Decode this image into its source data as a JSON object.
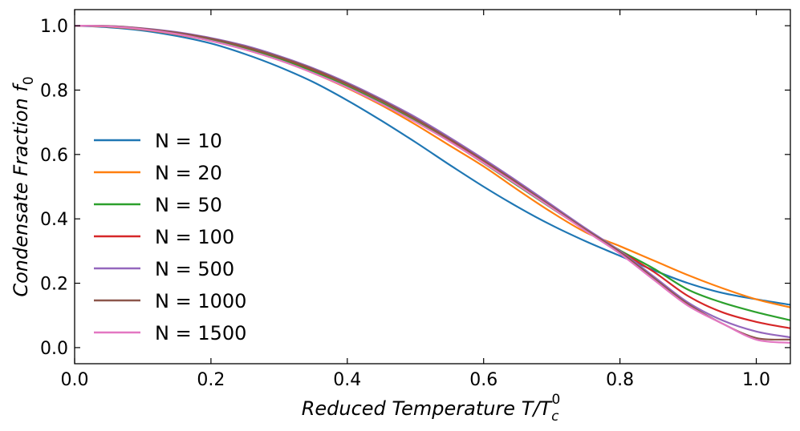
{
  "chart_data": {
    "type": "line",
    "title": "",
    "xlabel": "Reduced Temperature T/T",
    "xlabel_sub": "c",
    "xlabel_sup": "0",
    "ylabel": "Condensate Fraction f",
    "ylabel_sub": "0",
    "xlim": [
      0.0,
      1.05
    ],
    "ylim": [
      -0.05,
      1.05
    ],
    "xticks": [
      0.0,
      0.2,
      0.4,
      0.6,
      0.8,
      1.0
    ],
    "xtick_labels": [
      "0.0",
      "0.2",
      "0.4",
      "0.6",
      "0.8",
      "1.0"
    ],
    "yticks": [
      0.0,
      0.2,
      0.4,
      0.6,
      0.8,
      1.0
    ],
    "ytick_labels": [
      "0.0",
      "0.2",
      "0.4",
      "0.6",
      "0.8",
      "1.0"
    ],
    "grid": false,
    "legend_position": "center-left",
    "x": [
      0.0,
      0.05,
      0.1,
      0.15,
      0.2,
      0.25,
      0.3,
      0.35,
      0.4,
      0.45,
      0.5,
      0.55,
      0.6,
      0.65,
      0.7,
      0.75,
      0.8,
      0.85,
      0.9,
      0.95,
      1.0,
      1.05
    ],
    "series": [
      {
        "name": "N = 10",
        "N": "10",
        "color": "#1f77b4",
        "values": [
          1.0,
          0.995,
          0.985,
          0.968,
          0.945,
          0.912,
          0.872,
          0.825,
          0.768,
          0.705,
          0.638,
          0.568,
          0.5,
          0.437,
          0.38,
          0.33,
          0.285,
          0.24,
          0.2,
          0.17,
          0.15,
          0.133
        ]
      },
      {
        "name": "N = 20",
        "N": "20",
        "color": "#ff7f0e",
        "values": [
          1.0,
          0.997,
          0.988,
          0.973,
          0.953,
          0.926,
          0.893,
          0.853,
          0.806,
          0.753,
          0.693,
          0.628,
          0.563,
          0.49,
          0.42,
          0.358,
          0.315,
          0.27,
          0.225,
          0.185,
          0.15,
          0.125
        ]
      },
      {
        "name": "N = 50",
        "N": "50",
        "color": "#2ca02c",
        "values": [
          1.0,
          0.998,
          0.99,
          0.976,
          0.957,
          0.931,
          0.898,
          0.858,
          0.812,
          0.761,
          0.704,
          0.641,
          0.573,
          0.503,
          0.433,
          0.365,
          0.302,
          0.245,
          0.18,
          0.14,
          0.11,
          0.085
        ]
      },
      {
        "name": "N = 100",
        "N": "100",
        "color": "#d62728",
        "values": [
          1.0,
          0.998,
          0.991,
          0.978,
          0.96,
          0.934,
          0.902,
          0.863,
          0.818,
          0.767,
          0.71,
          0.647,
          0.58,
          0.511,
          0.44,
          0.369,
          0.3,
          0.235,
          0.16,
          0.11,
          0.08,
          0.06
        ]
      },
      {
        "name": "N = 500",
        "N": "500",
        "color": "#9467bd",
        "values": [
          1.0,
          0.999,
          0.992,
          0.98,
          0.962,
          0.938,
          0.906,
          0.868,
          0.823,
          0.772,
          0.716,
          0.653,
          0.586,
          0.516,
          0.443,
          0.37,
          0.3,
          0.22,
          0.14,
          0.085,
          0.05,
          0.032
        ]
      },
      {
        "name": "N = 1000",
        "N": "1000",
        "color": "#8c564b",
        "values": [
          1.0,
          0.999,
          0.991,
          0.978,
          0.96,
          0.935,
          0.903,
          0.865,
          0.819,
          0.768,
          0.711,
          0.648,
          0.581,
          0.511,
          0.438,
          0.366,
          0.297,
          0.215,
          0.135,
          0.075,
          0.03,
          0.025
        ]
      },
      {
        "name": "N = 1500",
        "N": "1500",
        "color": "#e377c2",
        "values": [
          1.0,
          0.998,
          0.989,
          0.974,
          0.953,
          0.926,
          0.893,
          0.853,
          0.808,
          0.757,
          0.701,
          0.64,
          0.574,
          0.505,
          0.434,
          0.362,
          0.292,
          0.21,
          0.13,
          0.075,
          0.025,
          0.015
        ]
      }
    ]
  }
}
